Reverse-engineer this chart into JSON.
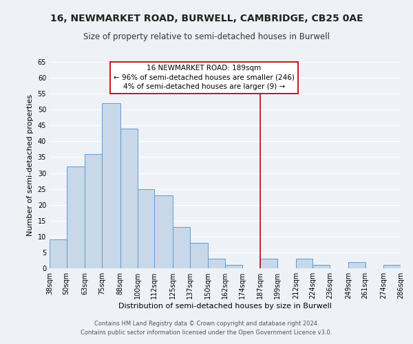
{
  "title": "16, NEWMARKET ROAD, BURWELL, CAMBRIDGE, CB25 0AE",
  "subtitle": "Size of property relative to semi-detached houses in Burwell",
  "xlabel": "Distribution of semi-detached houses by size in Burwell",
  "ylabel": "Number of semi-detached properties",
  "bar_edges": [
    38,
    50,
    63,
    75,
    88,
    100,
    112,
    125,
    137,
    150,
    162,
    174,
    187,
    199,
    212,
    224,
    236,
    249,
    261,
    274,
    286
  ],
  "bar_heights": [
    9,
    32,
    36,
    52,
    44,
    25,
    23,
    13,
    8,
    3,
    1,
    0,
    3,
    0,
    3,
    1,
    0,
    2,
    0,
    1
  ],
  "bar_color": "#c8d8e8",
  "bar_edge_color": "#5b9bd5",
  "vline_x": 187,
  "vline_color": "#cc0000",
  "annotation_title": "16 NEWMARKET ROAD: 189sqm",
  "annotation_line1": "← 96% of semi-detached houses are smaller (246)",
  "annotation_line2": "4% of semi-detached houses are larger (9) →",
  "annotation_box_color": "#ffffff",
  "annotation_box_edge": "#cc0000",
  "ylim": [
    0,
    65
  ],
  "yticks": [
    0,
    5,
    10,
    15,
    20,
    25,
    30,
    35,
    40,
    45,
    50,
    55,
    60,
    65
  ],
  "tick_labels": [
    "38sqm",
    "50sqm",
    "63sqm",
    "75sqm",
    "88sqm",
    "100sqm",
    "112sqm",
    "125sqm",
    "137sqm",
    "150sqm",
    "162sqm",
    "174sqm",
    "187sqm",
    "199sqm",
    "212sqm",
    "224sqm",
    "236sqm",
    "249sqm",
    "261sqm",
    "274sqm",
    "286sqm"
  ],
  "footer_line1": "Contains HM Land Registry data © Crown copyright and database right 2024.",
  "footer_line2": "Contains public sector information licensed under the Open Government Licence v3.0.",
  "bg_color": "#eef2f7",
  "grid_color": "#ffffff",
  "title_fontsize": 10,
  "subtitle_fontsize": 8.5,
  "ylabel_fontsize": 8,
  "xlabel_fontsize": 8,
  "tick_fontsize": 7,
  "ann_fontsize": 7.5,
  "footer_fontsize": 6
}
